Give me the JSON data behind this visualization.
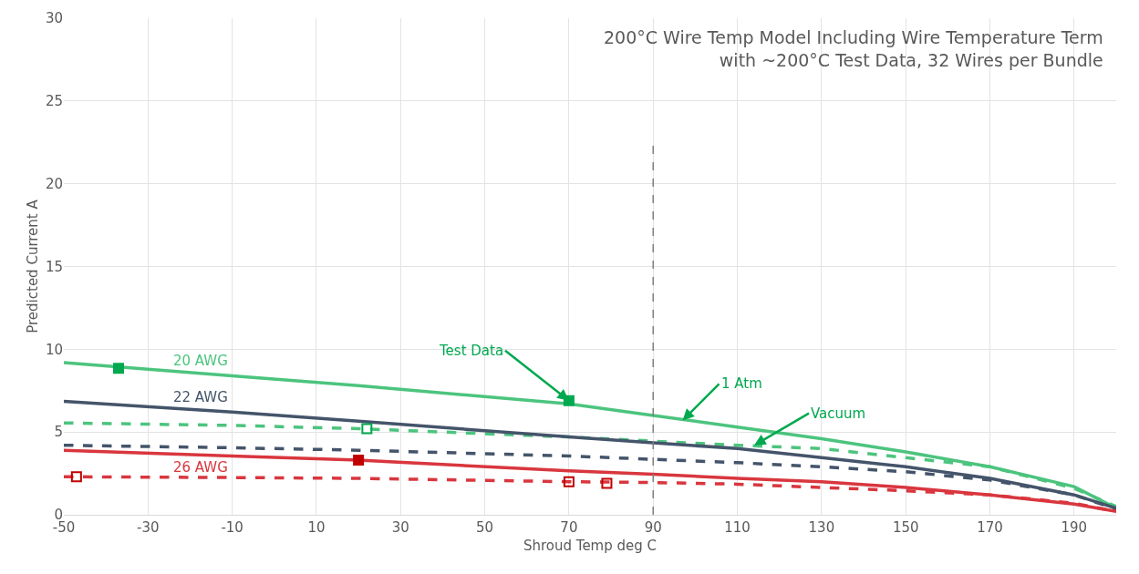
{
  "chart_data": {
    "type": "line",
    "title": "200°C Wire Temp Model Including Wire Temperature Term",
    "subtitle": "with ~200°C Test Data, 32 Wires per Bundle",
    "xlabel": "Shroud Temp deg C",
    "ylabel": "Predicted Current A",
    "x": [
      -50,
      -10,
      20,
      70,
      90,
      110,
      130,
      150,
      170,
      190,
      200
    ],
    "series": [
      {
        "name": "20 AWG",
        "color": "#4cc47e",
        "line_style": "solid",
        "marker": "none",
        "values": [
          9.2,
          8.4,
          7.8,
          6.7,
          6.0,
          5.3,
          4.6,
          3.8,
          2.9,
          1.7,
          0.4
        ]
      },
      {
        "color": "#4cc47e",
        "line_style": "dashed",
        "marker": "none",
        "values": [
          5.55,
          5.4,
          5.2,
          4.7,
          4.45,
          4.2,
          4.0,
          3.45,
          2.9,
          1.6,
          0.5
        ]
      },
      {
        "name": "22 AWG",
        "color": "#44546a",
        "line_style": "solid",
        "marker": "none",
        "values": [
          6.85,
          6.2,
          5.65,
          4.7,
          4.35,
          4.0,
          3.45,
          2.9,
          2.2,
          1.2,
          0.4
        ]
      },
      {
        "color": "#44546a",
        "line_style": "dashed",
        "marker": "none",
        "values": [
          4.2,
          4.05,
          3.9,
          3.55,
          3.35,
          3.15,
          2.9,
          2.6,
          2.1,
          1.2,
          0.35
        ]
      },
      {
        "name": "26 AWG",
        "color": "#d9363e",
        "line_style": "solid",
        "marker": "none",
        "values": [
          3.9,
          3.55,
          3.3,
          2.65,
          2.45,
          2.2,
          2.0,
          1.65,
          1.2,
          0.65,
          0.2
        ]
      },
      {
        "color": "#d9363e",
        "line_style": "dashed",
        "marker": "none",
        "values": [
          2.3,
          2.25,
          2.2,
          2.0,
          1.95,
          1.85,
          1.65,
          1.45,
          1.2,
          0.7,
          0.2
        ]
      },
      {
        "type": "scatter",
        "marker": "square",
        "color": "#00a84f",
        "x": [
          -37,
          70
        ],
        "values": [
          8.85,
          6.9
        ]
      },
      {
        "type": "scatter",
        "marker": "square",
        "color": "#c00000",
        "x": [
          20
        ],
        "values": [
          3.3
        ]
      },
      {
        "type": "scatter",
        "marker": "square",
        "color": "#00a84f",
        "x": [
          22
        ],
        "values": [
          5.2
        ]
      },
      {
        "type": "scatter",
        "marker": "square",
        "color": "#c00000",
        "x": [
          -47,
          70,
          79
        ],
        "values": [
          2.3,
          2.0,
          1.9
        ]
      }
    ],
    "annotations": [
      {
        "text": "Test Data",
        "x": 70,
        "y": 6.9
      },
      {
        "text": "1 Atm",
        "x": 97,
        "y": 5.7
      },
      {
        "text": "Vacuum",
        "x": 114,
        "y": 4.2
      }
    ],
    "ref_lines": [
      {
        "axis": "x",
        "value": 90,
        "color": "#7f7f7f",
        "line_style": "dashed"
      }
    ],
    "xlim": [
      -50,
      200
    ],
    "xticks": [
      -50,
      -30,
      -10,
      10,
      30,
      50,
      70,
      90,
      110,
      130,
      150,
      170,
      190
    ],
    "ylim": [
      0,
      30
    ],
    "yticks": [
      0,
      5,
      10,
      15,
      20,
      25,
      30
    ],
    "grid": true
  }
}
